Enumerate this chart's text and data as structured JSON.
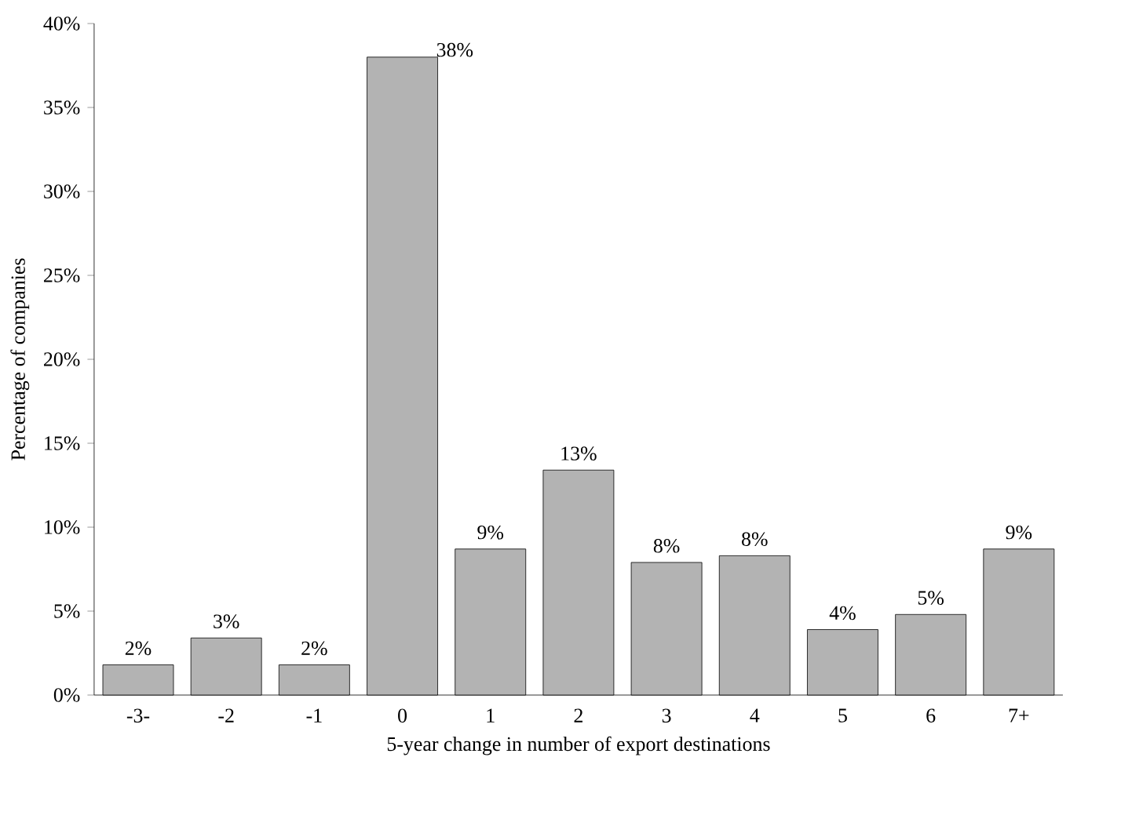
{
  "chart_data": {
    "type": "bar",
    "xlabel": "5-year change in number of export destinations",
    "ylabel": "Percentage of companies",
    "categories": [
      "-3-",
      "-2",
      "-1",
      "0",
      "1",
      "2",
      "3",
      "4",
      "5",
      "6",
      "7+"
    ],
    "values": [
      1.8,
      3.4,
      1.8,
      38,
      8.7,
      13.4,
      7.9,
      8.3,
      3.9,
      4.8,
      8.7
    ],
    "value_labels": [
      "2%",
      "3%",
      "2%",
      "38%",
      "9%",
      "13%",
      "8%",
      "8%",
      "4%",
      "5%",
      "9%"
    ],
    "color": "#b3b3b3",
    "ylim": [
      0,
      40
    ],
    "yticks": [
      {
        "value": 0,
        "label": "0%"
      },
      {
        "value": 5,
        "label": "5%"
      },
      {
        "value": 10,
        "label": "10%"
      },
      {
        "value": 15,
        "label": "15%"
      },
      {
        "value": 20,
        "label": "20%"
      },
      {
        "value": 25,
        "label": "25%"
      },
      {
        "value": 30,
        "label": "30%"
      },
      {
        "value": 35,
        "label": "35%"
      },
      {
        "value": 40,
        "label": "40%"
      }
    ],
    "grid": false
  }
}
